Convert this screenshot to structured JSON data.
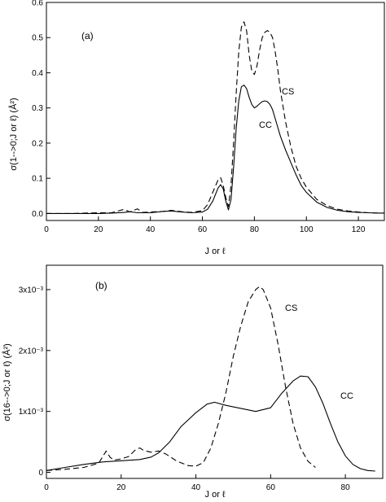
{
  "chart_data": [
    {
      "type": "line",
      "panel_label": "(a)",
      "xlabel": "J or ℓ",
      "ylabel": "σ(1-->0;J or ℓ)  (Å²)",
      "xlim": [
        0,
        130
      ],
      "ylim": [
        -0.02,
        0.6
      ],
      "x_ticks": [
        0,
        20,
        40,
        60,
        80,
        100,
        120
      ],
      "x_tick_labels": [
        "0",
        "20",
        "40",
        "60",
        "80",
        "100",
        "120"
      ],
      "y_ticks": [
        0.0,
        0.1,
        0.2,
        0.3,
        0.4,
        0.5,
        0.6
      ],
      "y_tick_labels": [
        "0.0",
        "0.1",
        "0.2",
        "0.3",
        "0.4",
        "0.5",
        "0.6"
      ],
      "grid": false,
      "series": [
        {
          "name": "CC",
          "style": "solid",
          "x": [
            0,
            10,
            20,
            25,
            30,
            32,
            35,
            40,
            45,
            48,
            52,
            56,
            60,
            62,
            64,
            66,
            67,
            68,
            69,
            70,
            71,
            72,
            73,
            74,
            75,
            76,
            77,
            78,
            79,
            80,
            81,
            82,
            83,
            84,
            85,
            86,
            87,
            88,
            89,
            90,
            92,
            94,
            96,
            98,
            100,
            104,
            108,
            112,
            116,
            120,
            124,
            128,
            130
          ],
          "y": [
            0.0,
            0.0,
            0.0,
            0.001,
            0.003,
            0.005,
            0.002,
            0.002,
            0.006,
            0.007,
            0.004,
            0.002,
            0.004,
            0.012,
            0.035,
            0.072,
            0.082,
            0.07,
            0.035,
            0.01,
            0.04,
            0.13,
            0.24,
            0.32,
            0.36,
            0.365,
            0.355,
            0.33,
            0.31,
            0.3,
            0.305,
            0.312,
            0.318,
            0.32,
            0.318,
            0.31,
            0.295,
            0.27,
            0.245,
            0.22,
            0.18,
            0.145,
            0.11,
            0.08,
            0.06,
            0.032,
            0.017,
            0.009,
            0.005,
            0.003,
            0.002,
            0.001,
            0.001
          ]
        },
        {
          "name": "CS",
          "style": "dashed",
          "x": [
            0,
            10,
            20,
            25,
            28,
            30,
            32,
            34,
            35,
            37,
            40,
            45,
            48,
            52,
            56,
            60,
            62,
            64,
            66,
            67,
            68,
            69,
            70,
            71,
            72,
            73,
            74,
            75,
            76,
            77,
            78,
            79,
            80,
            81,
            82,
            83,
            84,
            85,
            86,
            87,
            88,
            89,
            90,
            92,
            94,
            96,
            98,
            100,
            104,
            108,
            112,
            116,
            120,
            124,
            128,
            130
          ],
          "y": [
            0.0,
            0.0,
            0.002,
            0.002,
            0.008,
            0.012,
            0.004,
            0.01,
            0.013,
            0.003,
            0.004,
            0.006,
            0.009,
            0.005,
            0.003,
            0.008,
            0.025,
            0.06,
            0.095,
            0.102,
            0.08,
            0.045,
            0.02,
            0.08,
            0.2,
            0.34,
            0.46,
            0.53,
            0.545,
            0.52,
            0.45,
            0.405,
            0.395,
            0.42,
            0.465,
            0.5,
            0.515,
            0.52,
            0.515,
            0.5,
            0.46,
            0.41,
            0.35,
            0.26,
            0.19,
            0.135,
            0.1,
            0.075,
            0.04,
            0.022,
            0.012,
            0.007,
            0.004,
            0.002,
            0.001,
            0.001
          ]
        }
      ]
    },
    {
      "type": "line",
      "panel_label": "(b)",
      "xlabel": "J or ℓ",
      "ylabel": "σ(16-->0;J or ℓ)  (Å²)",
      "xlim": [
        0,
        90
      ],
      "ylim": [
        -0.0001,
        0.0034
      ],
      "x_ticks": [
        0,
        20,
        40,
        60,
        80
      ],
      "x_tick_labels": [
        "0",
        "20",
        "40",
        "60",
        "80"
      ],
      "y_ticks": [
        0,
        0.001,
        0.002,
        0.003
      ],
      "y_tick_labels": [
        "0",
        "1x10⁻³",
        "2x10⁻³",
        "3x10⁻³"
      ],
      "grid": false,
      "series": [
        {
          "name": "CC",
          "style": "solid",
          "x": [
            0,
            5,
            10,
            15,
            20,
            25,
            28,
            30,
            33,
            36,
            40,
            43,
            45,
            48,
            52,
            56,
            60,
            63,
            66,
            68,
            70,
            72,
            74,
            76,
            78,
            80,
            82,
            84,
            86,
            88
          ],
          "y": [
            3e-05,
            8e-05,
            0.00013,
            0.00017,
            0.00019,
            0.00021,
            0.00025,
            0.00032,
            0.0005,
            0.00075,
            0.00098,
            0.00112,
            0.00115,
            0.0011,
            0.00105,
            0.001,
            0.00106,
            0.0013,
            0.0015,
            0.00158,
            0.00157,
            0.0014,
            0.00113,
            0.0008,
            0.0005,
            0.00027,
            0.00013,
            6e-05,
            3e-05,
            2e-05
          ]
        },
        {
          "name": "CS",
          "style": "dashed",
          "x": [
            0,
            5,
            10,
            14,
            15,
            16,
            17,
            18,
            20,
            22,
            24,
            25,
            26,
            28,
            30,
            32,
            35,
            38,
            40,
            42,
            44,
            46,
            48,
            50,
            52,
            54,
            56,
            57,
            58,
            60,
            62,
            64,
            66,
            68,
            70,
            72
          ],
          "y": [
            3e-05,
            5e-05,
            8e-05,
            0.00015,
            0.00025,
            0.00035,
            0.00025,
            0.0002,
            0.00022,
            0.00026,
            0.00038,
            0.0004,
            0.00036,
            0.00033,
            0.00035,
            0.0003,
            0.00018,
            0.00011,
            0.0001,
            0.00016,
            0.0004,
            0.0008,
            0.0013,
            0.0019,
            0.0024,
            0.0028,
            0.003,
            0.00305,
            0.003,
            0.0027,
            0.0021,
            0.0014,
            0.0008,
            0.0004,
            0.00018,
            8e-05
          ]
        }
      ]
    }
  ]
}
